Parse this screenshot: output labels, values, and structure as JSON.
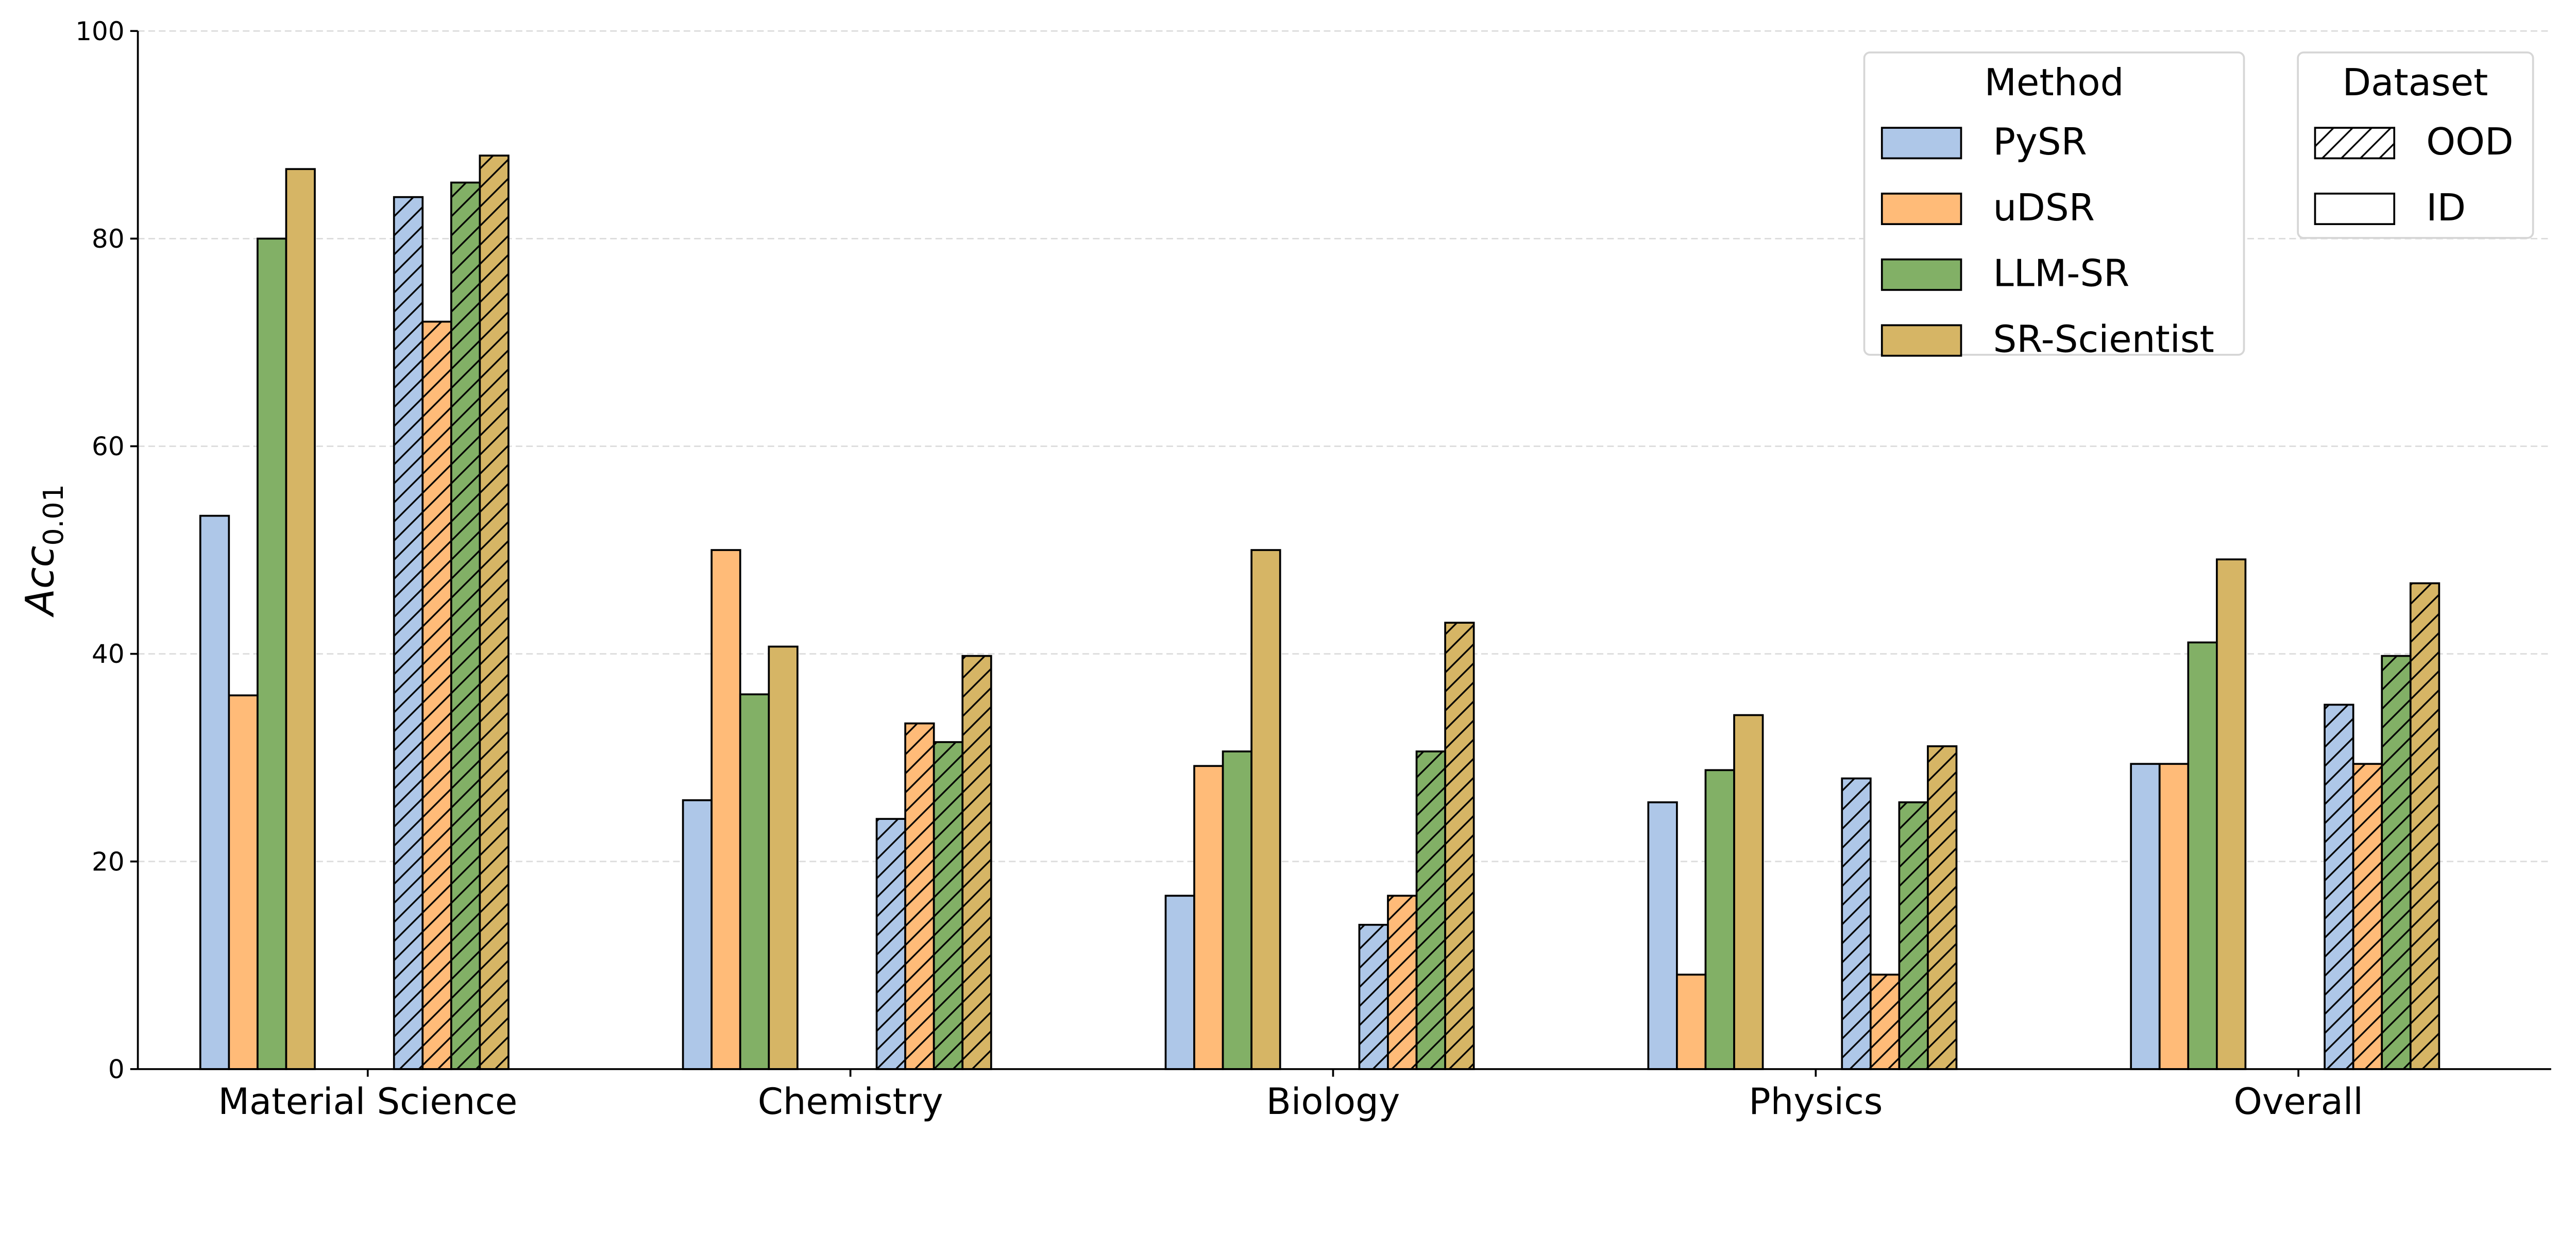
{
  "chart_data": {
    "type": "bar",
    "title": "",
    "xlabel": "",
    "ylabel": "Acc",
    "ylabel_subscript": "0.01",
    "ylim": [
      0,
      100
    ],
    "yticks": [
      "0",
      "20",
      "40",
      "60",
      "80",
      "100"
    ],
    "grid": "horizontal dashed",
    "categories": [
      "Material Science",
      "Chemistry",
      "Biology",
      "Physics",
      "Overall"
    ],
    "methods": [
      {
        "name": "PySR",
        "color": "#aec7e8"
      },
      {
        "name": "uDSR",
        "color": "#ffbb78"
      },
      {
        "name": "LLM-SR",
        "color": "#82b066"
      },
      {
        "name": "SR-Scientist",
        "color": "#d6b565"
      }
    ],
    "datasets": [
      {
        "name": "OOD",
        "hatch": "diagonal"
      },
      {
        "name": "ID",
        "hatch": "none"
      }
    ],
    "series": [
      {
        "method": "PySR",
        "dataset": "ID",
        "values": [
          53.3,
          25.9,
          16.7,
          25.7,
          29.4
        ]
      },
      {
        "method": "uDSR",
        "dataset": "ID",
        "values": [
          36.0,
          50.0,
          29.2,
          9.1,
          29.4
        ]
      },
      {
        "method": "LLM-SR",
        "dataset": "ID",
        "values": [
          80.0,
          36.1,
          30.6,
          28.8,
          41.1
        ]
      },
      {
        "method": "SR-Scientist",
        "dataset": "ID",
        "values": [
          86.7,
          40.7,
          50.0,
          34.1,
          49.1
        ]
      },
      {
        "method": "PySR",
        "dataset": "OOD",
        "values": [
          84.0,
          24.1,
          13.9,
          28.0,
          35.1
        ]
      },
      {
        "method": "uDSR",
        "dataset": "OOD",
        "values": [
          72.0,
          33.3,
          16.7,
          9.1,
          29.4
        ]
      },
      {
        "method": "LLM-SR",
        "dataset": "OOD",
        "values": [
          85.4,
          31.5,
          30.6,
          25.7,
          39.8
        ]
      },
      {
        "method": "SR-Scientist",
        "dataset": "OOD",
        "values": [
          88.0,
          39.8,
          43.0,
          31.1,
          46.8
        ]
      }
    ],
    "legend": {
      "placement": "top-right",
      "method_title": "Method",
      "dataset_title": "Dataset"
    }
  }
}
